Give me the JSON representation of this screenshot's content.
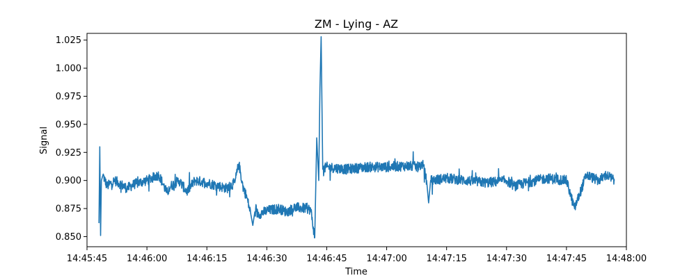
{
  "chart_data": {
    "type": "line",
    "title": "ZM - Lying - AZ",
    "xlabel": "Time",
    "ylabel": "Signal",
    "xlim": [
      "14:45:45",
      "14:48:00"
    ],
    "ylim": [
      0.841,
      1.031
    ],
    "x_ticks": [
      "14:45:45",
      "14:46:00",
      "14:46:15",
      "14:46:30",
      "14:46:45",
      "14:47:00",
      "14:47:15",
      "14:47:30",
      "14:47:45",
      "14:48:00"
    ],
    "y_ticks": [
      "0.850",
      "0.875",
      "0.900",
      "0.925",
      "0.950",
      "0.975",
      "1.000",
      "1.025"
    ],
    "grid": false,
    "series": [
      {
        "color": "#1f77b4",
        "x": [
          "14:45:48",
          "14:45:48.2",
          "14:45:48.4",
          "14:45:48.6",
          "14:45:49",
          "14:45:50",
          "14:45:52",
          "14:45:55",
          "14:45:57",
          "14:46:00",
          "14:46:03",
          "14:46:05",
          "14:46:06",
          "14:46:08",
          "14:46:10",
          "14:46:12",
          "14:46:15",
          "14:46:18",
          "14:46:20",
          "14:46:22",
          "14:46:23",
          "14:46:24",
          "14:46:25",
          "14:46:26",
          "14:46:26.5",
          "14:46:27",
          "14:46:28",
          "14:46:30",
          "14:46:33",
          "14:46:35",
          "14:46:37",
          "14:46:40",
          "14:46:41",
          "14:46:42",
          "14:46:42.5",
          "14:46:43",
          "14:46:43.3",
          "14:46:43.6",
          "14:46:44",
          "14:46:45",
          "14:46:50",
          "14:46:55",
          "14:47:00",
          "14:47:05",
          "14:47:08",
          "14:47:09",
          "14:47:10",
          "14:47:10.5",
          "14:47:11",
          "14:47:15",
          "14:47:20",
          "14:47:25",
          "14:47:30",
          "14:47:32",
          "14:47:35",
          "14:47:40",
          "14:47:45",
          "14:47:47",
          "14:47:50",
          "14:47:53",
          "14:47:55",
          "14:47:57"
        ],
        "values": [
          0.862,
          0.93,
          0.851,
          0.9,
          0.905,
          0.895,
          0.9,
          0.893,
          0.897,
          0.9,
          0.905,
          0.889,
          0.895,
          0.9,
          0.89,
          0.9,
          0.898,
          0.895,
          0.893,
          0.898,
          0.915,
          0.895,
          0.885,
          0.87,
          0.86,
          0.872,
          0.87,
          0.873,
          0.875,
          0.872,
          0.876,
          0.875,
          0.874,
          0.849,
          0.938,
          0.9,
          0.982,
          1.028,
          0.91,
          0.912,
          0.91,
          0.912,
          0.912,
          0.913,
          0.912,
          0.915,
          0.9,
          0.88,
          0.9,
          0.902,
          0.9,
          0.898,
          0.9,
          0.895,
          0.898,
          0.902,
          0.9,
          0.875,
          0.905,
          0.9,
          0.905,
          0.9
        ]
      }
    ]
  }
}
